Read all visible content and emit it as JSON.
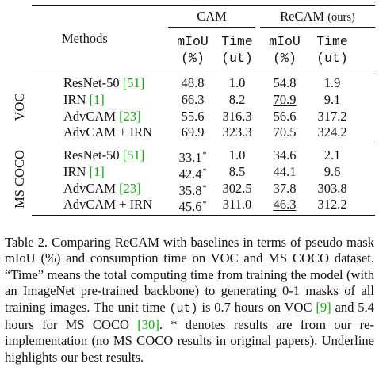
{
  "table": {
    "header": {
      "methods": "Methods",
      "groups": [
        "CAM",
        "ReCAM"
      ],
      "recam_suffix": "(ours)",
      "metric_names": [
        "mIoU",
        "Time",
        "mIoU",
        "Time"
      ],
      "metric_units": [
        "(%)",
        "(ut)",
        "(%)",
        "(ut)"
      ]
    },
    "sections": [
      {
        "name": "VOC",
        "rows": [
          {
            "method": "ResNet-50",
            "cite": "[51]",
            "cells": [
              "48.8",
              "1.0",
              "54.8",
              "1.9"
            ]
          },
          {
            "method": "IRN",
            "cite": "[1]",
            "cells": [
              "66.3",
              "8.2",
              "70.9",
              "9.1"
            ]
          },
          {
            "method": "AdvCAM",
            "cite": "[23]",
            "cells": [
              "55.6",
              "316.3",
              "56.6",
              "317.2"
            ]
          },
          {
            "method": "AdvCAM + IRN",
            "cite": "",
            "cells": [
              "69.9",
              "323.3",
              "70.5",
              "324.2"
            ]
          }
        ]
      },
      {
        "name": "MS COCO",
        "rows": [
          {
            "method": "ResNet-50",
            "cite": "[51]",
            "cells": [
              "33.1",
              "1.0",
              "34.6",
              "2.1"
            ]
          },
          {
            "method": "IRN",
            "cite": "[1]",
            "cells": [
              "42.4",
              "8.5",
              "44.1",
              "9.6"
            ]
          },
          {
            "method": "AdvCAM",
            "cite": "[23]",
            "cells": [
              "35.8",
              "302.5",
              "37.8",
              "303.8"
            ]
          },
          {
            "method": "AdvCAM + IRN",
            "cite": "",
            "cells": [
              "45.6",
              "311.0",
              "46.3",
              "312.2"
            ]
          }
        ]
      }
    ],
    "star": "*"
  },
  "caption": {
    "p1": "Table 2.  Comparing ReCAM with baselines in terms of pseudo mask mIoU (%) and consumption time on VOC and MS COCO dataset. “Time” means the total computing time ",
    "from": "from",
    "p2": " training the model (with an ImageNet pre-trained backbone) ",
    "to": "to",
    "p3": " generating 0-1 masks of all training images.  The unit time ",
    "ut": "(ut)",
    "p4": " is 0.7 hours on VOC ",
    "cite9": "[9]",
    "p5": " and 5.4 hours for MS COCO ",
    "cite30": "[30]",
    "p6": ".  * denotes results are from our re-implementation (no MS COCO results in original papers). Underline highlights our best results."
  }
}
